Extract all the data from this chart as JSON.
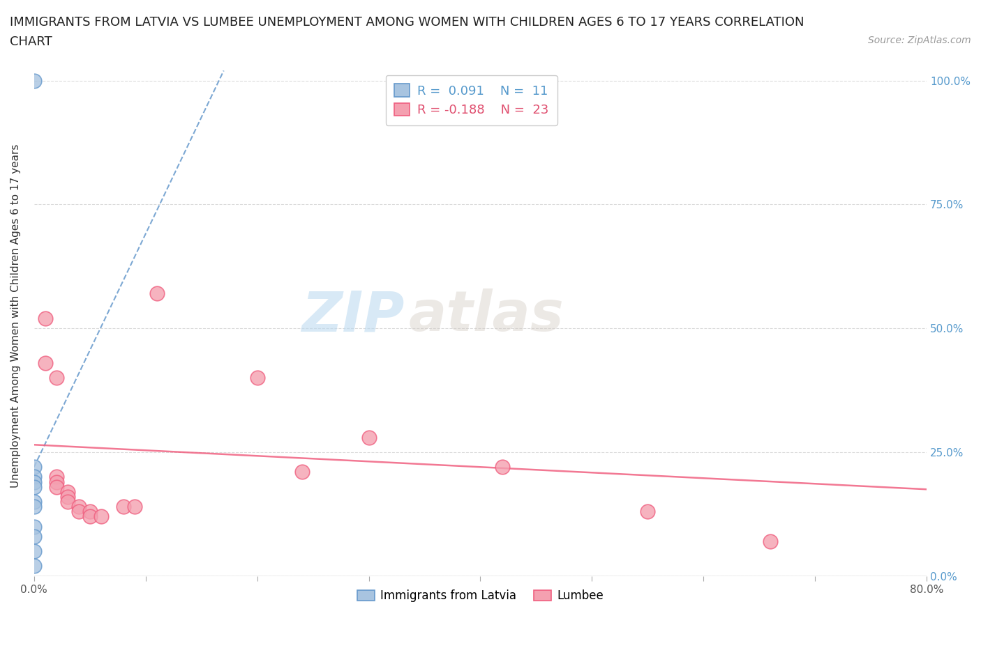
{
  "title_line1": "IMMIGRANTS FROM LATVIA VS LUMBEE UNEMPLOYMENT AMONG WOMEN WITH CHILDREN AGES 6 TO 17 YEARS CORRELATION",
  "title_line2": "CHART",
  "source": "Source: ZipAtlas.com",
  "ylabel": "Unemployment Among Women with Children Ages 6 to 17 years",
  "xlim": [
    0.0,
    0.8
  ],
  "ylim": [
    0.0,
    1.05
  ],
  "xticks": [
    0.0,
    0.1,
    0.2,
    0.3,
    0.4,
    0.5,
    0.6,
    0.7,
    0.8
  ],
  "xticklabels": [
    "0.0%",
    "",
    "",
    "",
    "",
    "",
    "",
    "",
    "80.0%"
  ],
  "yticks": [
    0.0,
    0.25,
    0.5,
    0.75,
    1.0
  ],
  "yticklabels": [
    "0.0%",
    "25.0%",
    "50.0%",
    "75.0%",
    "100.0%"
  ],
  "latvia_r": 0.091,
  "latvia_n": 11,
  "lumbee_r": -0.188,
  "lumbee_n": 23,
  "latvia_color": "#a8c4e0",
  "lumbee_color": "#f4a0b0",
  "trend_latvia_color": "#6699cc",
  "trend_lumbee_color": "#f06080",
  "watermark_zip": "ZIP",
  "watermark_atlas": "atlas",
  "latvia_points": [
    [
      0.0,
      1.0
    ],
    [
      0.0,
      0.22
    ],
    [
      0.0,
      0.2
    ],
    [
      0.0,
      0.19
    ],
    [
      0.0,
      0.18
    ],
    [
      0.0,
      0.15
    ],
    [
      0.0,
      0.14
    ],
    [
      0.0,
      0.1
    ],
    [
      0.0,
      0.08
    ],
    [
      0.0,
      0.05
    ],
    [
      0.0,
      0.02
    ]
  ],
  "lumbee_points": [
    [
      0.01,
      0.52
    ],
    [
      0.01,
      0.43
    ],
    [
      0.02,
      0.4
    ],
    [
      0.02,
      0.2
    ],
    [
      0.02,
      0.19
    ],
    [
      0.02,
      0.18
    ],
    [
      0.03,
      0.17
    ],
    [
      0.03,
      0.16
    ],
    [
      0.03,
      0.15
    ],
    [
      0.04,
      0.14
    ],
    [
      0.04,
      0.13
    ],
    [
      0.05,
      0.13
    ],
    [
      0.05,
      0.12
    ],
    [
      0.06,
      0.12
    ],
    [
      0.08,
      0.14
    ],
    [
      0.09,
      0.14
    ],
    [
      0.11,
      0.57
    ],
    [
      0.2,
      0.4
    ],
    [
      0.24,
      0.21
    ],
    [
      0.3,
      0.28
    ],
    [
      0.42,
      0.22
    ],
    [
      0.55,
      0.13
    ],
    [
      0.66,
      0.07
    ]
  ],
  "latvia_trend_x": [
    0.0,
    0.17
  ],
  "latvia_trend_y": [
    0.22,
    1.02
  ],
  "lumbee_trend_x": [
    0.0,
    0.8
  ],
  "lumbee_trend_y": [
    0.265,
    0.175
  ]
}
